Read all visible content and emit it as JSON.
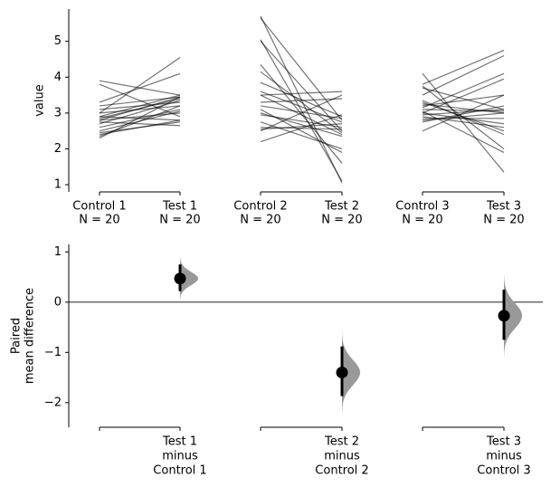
{
  "chart_data": [
    {
      "type": "paired",
      "ylabel": "value",
      "ylim": [
        0.8,
        5.9
      ],
      "yticks": [
        1,
        2,
        3,
        4,
        5
      ],
      "categories": [
        "Control 1",
        "Test 1",
        "Control 2",
        "Test 2",
        "Control 3",
        "Test 3"
      ],
      "sublabels": [
        "N = 20",
        "N = 20",
        "N = 20",
        "N = 20",
        "N = 20",
        "N = 20"
      ],
      "color": "#000000",
      "pairs": [
        {
          "control": [
            3.9,
            3.8,
            3.3,
            3.2,
            3.1,
            3.0,
            3.0,
            2.9,
            2.9,
            2.85,
            2.8,
            2.8,
            2.75,
            2.7,
            2.6,
            2.5,
            2.45,
            2.4,
            2.35,
            2.3
          ],
          "test": [
            3.5,
            2.9,
            4.1,
            3.45,
            3.3,
            4.55,
            3.2,
            3.5,
            2.8,
            3.4,
            3.0,
            3.45,
            2.65,
            3.35,
            3.1,
            3.05,
            2.75,
            2.8,
            3.2,
            3.45
          ]
        },
        {
          "control": [
            5.7,
            5.65,
            5.05,
            5.0,
            4.35,
            4.15,
            3.85,
            3.6,
            3.5,
            3.5,
            3.3,
            3.2,
            3.1,
            2.95,
            2.75,
            2.6,
            2.55,
            2.5,
            2.2,
            3.0
          ],
          "test": [
            1.05,
            2.8,
            1.1,
            2.5,
            1.6,
            2.45,
            2.9,
            2.75,
            2.4,
            3.6,
            3.4,
            2.85,
            1.9,
            2.6,
            2.0,
            2.55,
            2.7,
            3.5,
            2.95,
            2.35
          ]
        },
        {
          "control": [
            4.1,
            3.8,
            3.75,
            3.7,
            3.5,
            3.3,
            3.25,
            3.2,
            3.15,
            3.1,
            3.05,
            3.0,
            3.0,
            2.95,
            2.9,
            2.85,
            2.8,
            2.75,
            2.5,
            3.35
          ],
          "test": [
            1.35,
            4.75,
            2.0,
            3.1,
            4.6,
            2.5,
            3.0,
            3.5,
            4.1,
            3.05,
            1.9,
            2.7,
            3.95,
            3.1,
            2.6,
            2.85,
            3.0,
            3.2,
            3.5,
            2.4
          ]
        }
      ]
    },
    {
      "type": "estimation",
      "ylabel": [
        "Paired",
        "mean difference"
      ],
      "ylim": [
        -2.49,
        1.15
      ],
      "yticks": [
        {
          "value": -2,
          "label": "−2"
        },
        {
          "value": -1,
          "label": "−1"
        },
        0,
        1
      ],
      "categories": [
        [
          "Test 1",
          "minus",
          "Control 1"
        ],
        [
          "Test 2",
          "minus",
          "Control 2"
        ],
        [
          "Test 3",
          "minus",
          "Control 3"
        ]
      ],
      "values": [
        0.47,
        -1.4,
        -0.27
      ],
      "ci": [
        [
          0.22,
          0.75
        ],
        [
          -1.87,
          -0.88
        ],
        [
          -0.75,
          0.25
        ]
      ],
      "color": "#000000",
      "dist_color": "#999999"
    }
  ]
}
